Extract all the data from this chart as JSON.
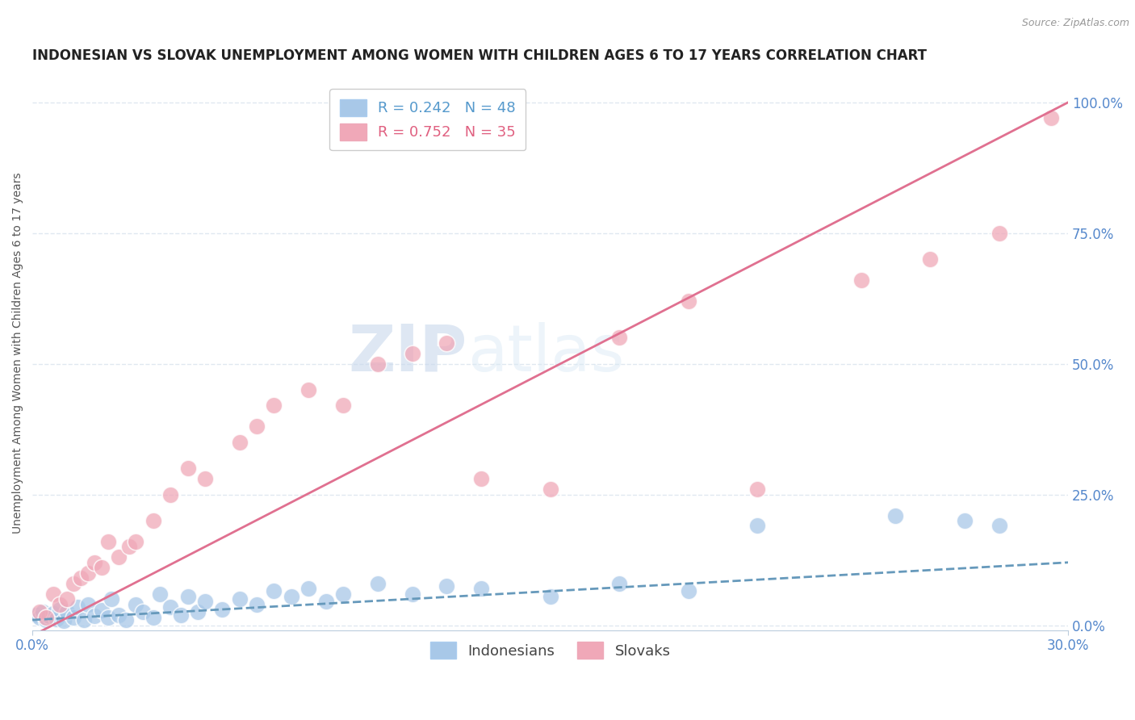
{
  "title": "INDONESIAN VS SLOVAK UNEMPLOYMENT AMONG WOMEN WITH CHILDREN AGES 6 TO 17 YEARS CORRELATION CHART",
  "source_text": "Source: ZipAtlas.com",
  "ylabel": "Unemployment Among Women with Children Ages 6 to 17 years",
  "x_min": 0.0,
  "x_max": 0.3,
  "y_min": -0.01,
  "y_max": 1.05,
  "x_tick_labels": [
    "0.0%",
    "30.0%"
  ],
  "y_ticks_right": [
    0.0,
    0.25,
    0.5,
    0.75,
    1.0
  ],
  "y_tick_labels_right": [
    "0.0%",
    "25.0%",
    "50.0%",
    "75.0%",
    "100.0%"
  ],
  "indonesian_R": 0.242,
  "indonesian_N": 48,
  "slovak_R": 0.752,
  "slovak_N": 35,
  "blue_color": "#A8C8E8",
  "pink_color": "#F0A8B8",
  "blue_line_color": "#6699BB",
  "pink_line_color": "#E07090",
  "legend_label_blue": "Indonesians",
  "legend_label_pink": "Slovaks",
  "background_color": "#FFFFFF",
  "grid_color": "#E0E8F0",
  "indonesian_x": [
    0.001,
    0.002,
    0.003,
    0.004,
    0.005,
    0.006,
    0.007,
    0.008,
    0.009,
    0.01,
    0.012,
    0.013,
    0.015,
    0.016,
    0.018,
    0.02,
    0.022,
    0.023,
    0.025,
    0.027,
    0.03,
    0.032,
    0.035,
    0.037,
    0.04,
    0.043,
    0.045,
    0.048,
    0.05,
    0.055,
    0.06,
    0.065,
    0.07,
    0.075,
    0.08,
    0.085,
    0.09,
    0.1,
    0.11,
    0.12,
    0.13,
    0.15,
    0.17,
    0.19,
    0.21,
    0.25,
    0.27,
    0.28
  ],
  "indonesian_y": [
    0.02,
    0.015,
    0.025,
    0.01,
    0.018,
    0.022,
    0.012,
    0.03,
    0.008,
    0.025,
    0.015,
    0.035,
    0.01,
    0.04,
    0.018,
    0.028,
    0.015,
    0.05,
    0.02,
    0.01,
    0.04,
    0.025,
    0.015,
    0.06,
    0.035,
    0.02,
    0.055,
    0.025,
    0.045,
    0.03,
    0.05,
    0.04,
    0.065,
    0.055,
    0.07,
    0.045,
    0.06,
    0.08,
    0.06,
    0.075,
    0.07,
    0.055,
    0.08,
    0.065,
    0.19,
    0.21,
    0.2,
    0.19
  ],
  "slovak_x": [
    0.002,
    0.004,
    0.006,
    0.008,
    0.01,
    0.012,
    0.014,
    0.016,
    0.018,
    0.02,
    0.022,
    0.025,
    0.028,
    0.03,
    0.035,
    0.04,
    0.045,
    0.05,
    0.06,
    0.065,
    0.07,
    0.08,
    0.09,
    0.1,
    0.11,
    0.12,
    0.13,
    0.15,
    0.17,
    0.19,
    0.21,
    0.24,
    0.26,
    0.28,
    0.295
  ],
  "slovak_y": [
    0.025,
    0.015,
    0.06,
    0.04,
    0.05,
    0.08,
    0.09,
    0.1,
    0.12,
    0.11,
    0.16,
    0.13,
    0.15,
    0.16,
    0.2,
    0.25,
    0.3,
    0.28,
    0.35,
    0.38,
    0.42,
    0.45,
    0.42,
    0.5,
    0.52,
    0.54,
    0.28,
    0.26,
    0.55,
    0.62,
    0.26,
    0.66,
    0.7,
    0.75,
    0.97
  ],
  "watermark_zip": "ZIP",
  "watermark_atlas": "atlas",
  "title_fontsize": 12,
  "label_fontsize": 10,
  "tick_fontsize": 12
}
